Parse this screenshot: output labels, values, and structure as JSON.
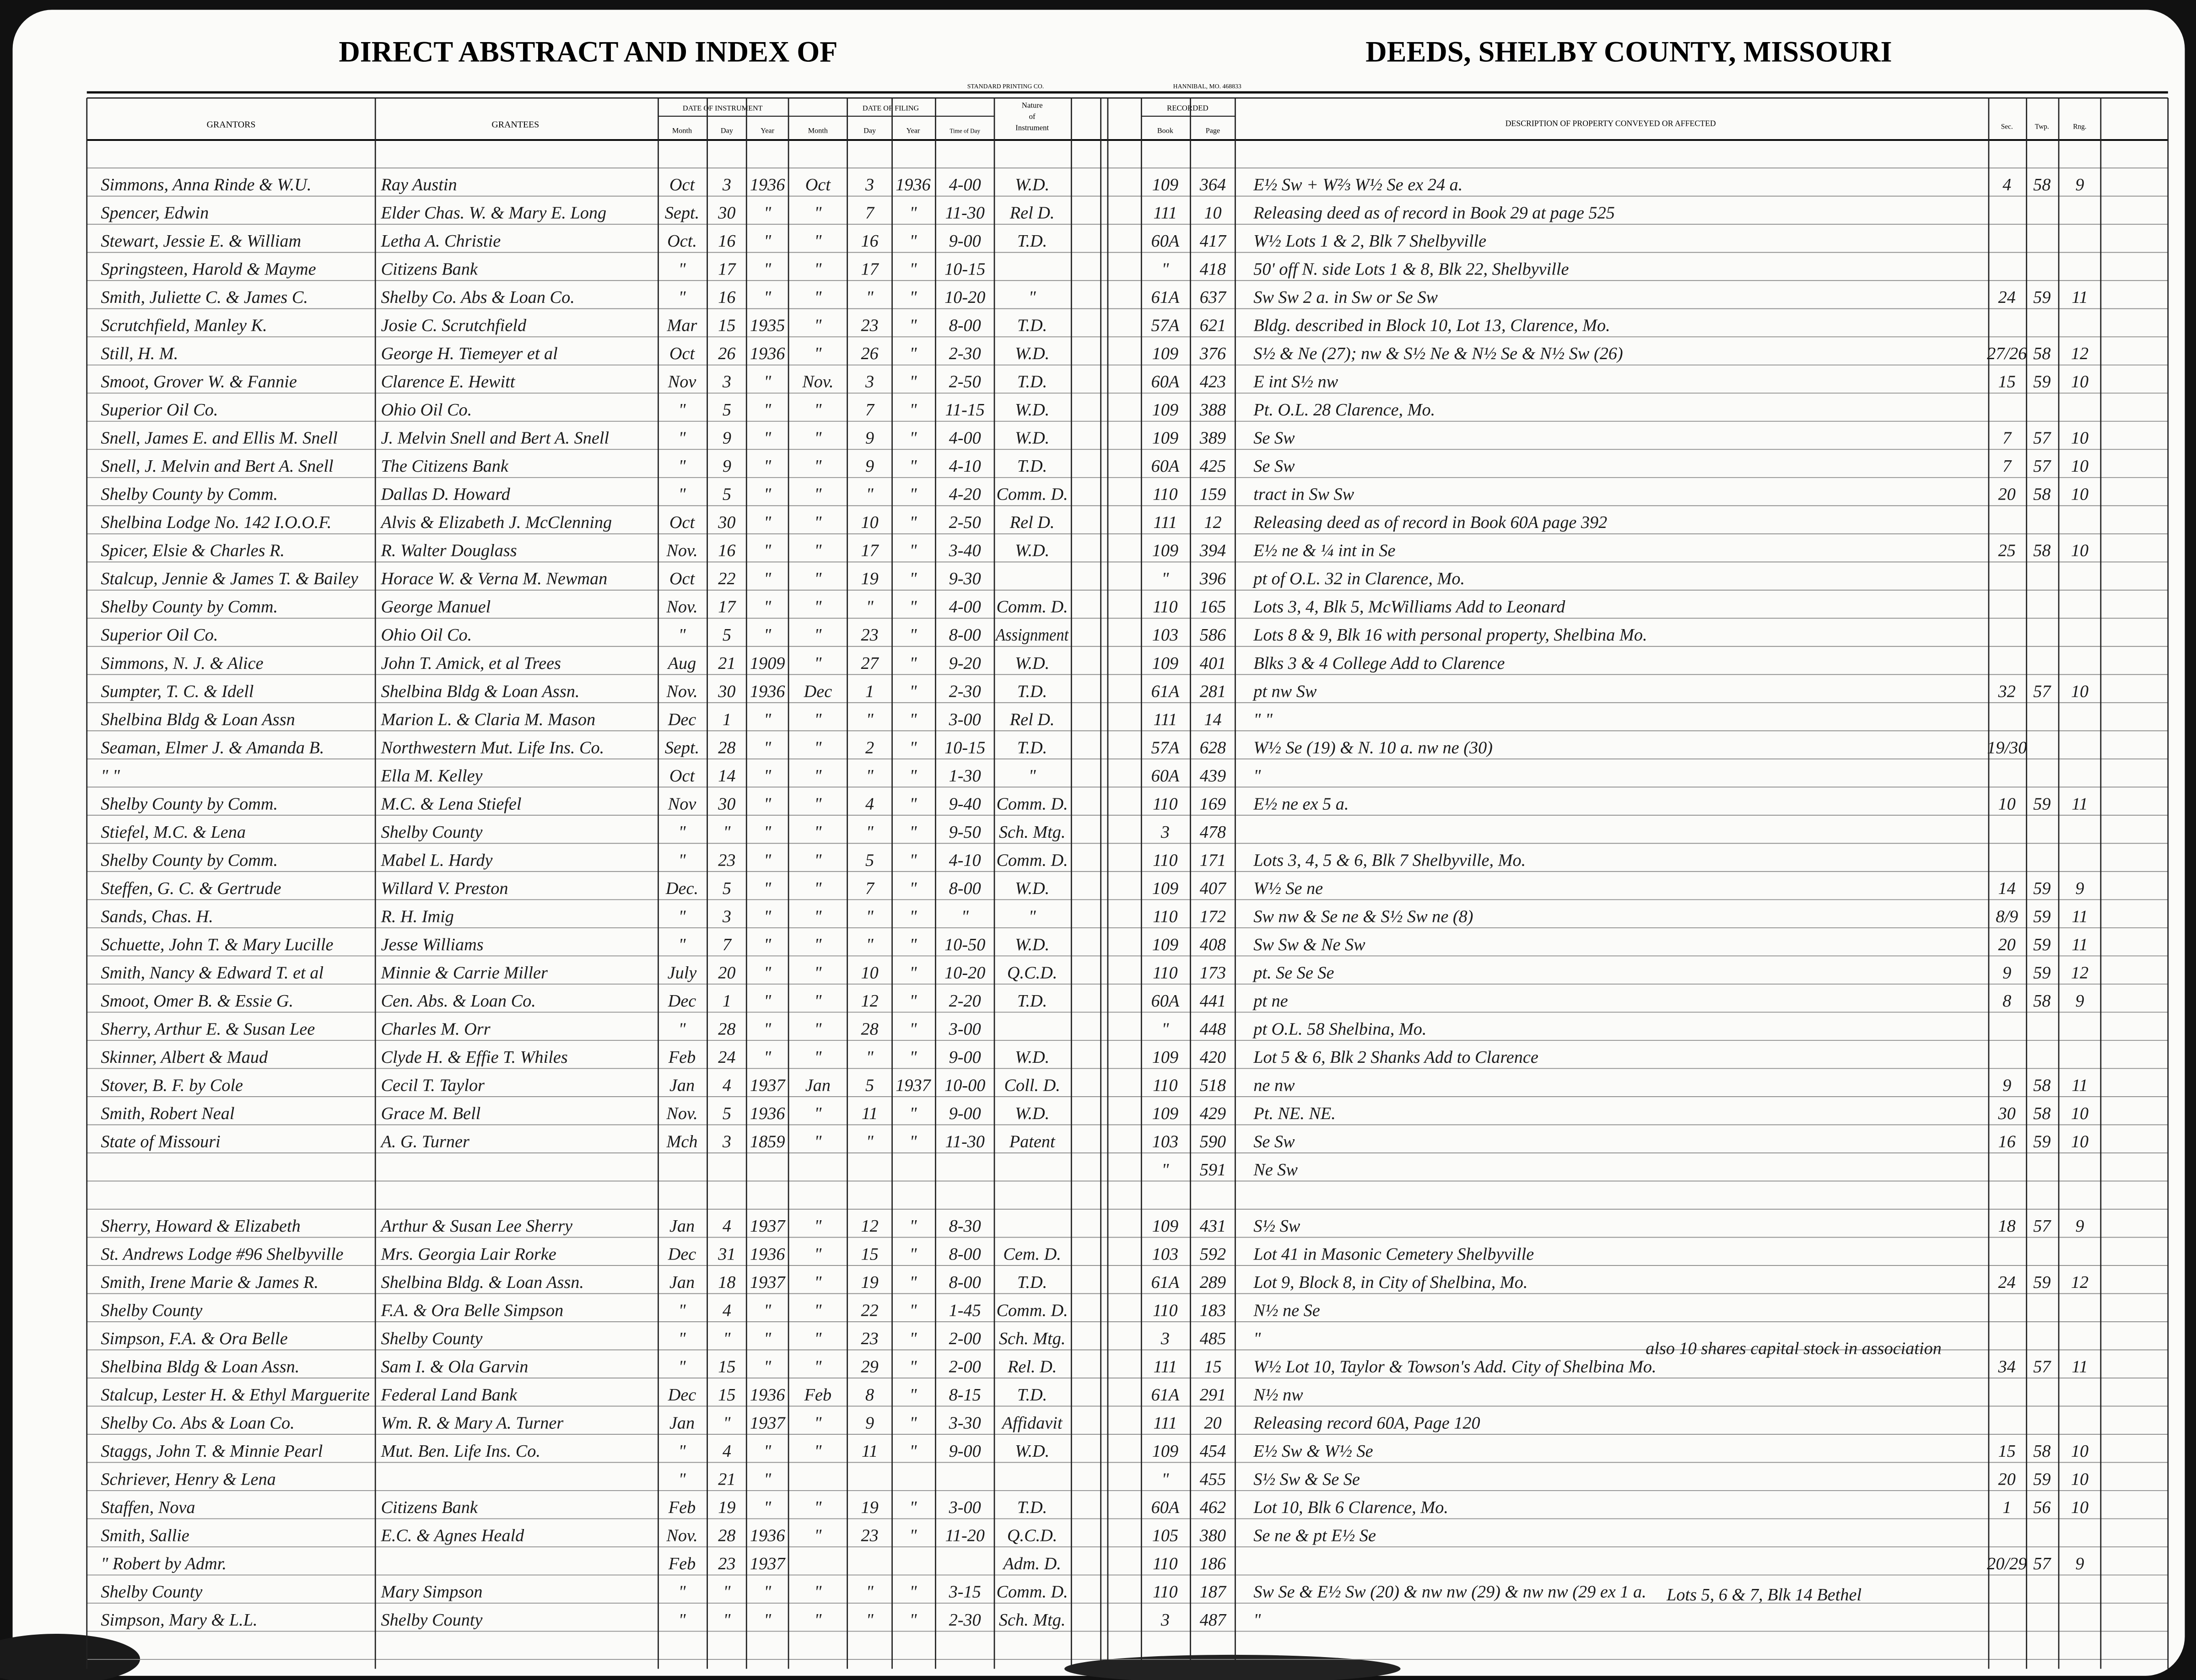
{
  "header": {
    "title_left": "DIRECT ABSTRACT AND INDEX OF",
    "title_right": "DEEDS, SHELBY COUNTY, MISSOURI",
    "printer": "STANDARD PRINTING CO.",
    "printer_place": "HANNIBAL, MO. 468833"
  },
  "columns": {
    "grantors": "GRANTORS",
    "grantees": "GRANTEES",
    "date_of_instrument": "DATE OF INSTRUMENT",
    "instrument_subheads": [
      "Month",
      "Day",
      "Year"
    ],
    "date_of_filing": "DATE OF FILING",
    "filing_subheads": [
      "Month",
      "Day",
      "Year",
      "Time of Day"
    ],
    "nature": [
      "Nature",
      "of",
      "Instrument"
    ],
    "recorded": "RECORDED",
    "recorded_subheads": [
      "Book",
      "Page"
    ],
    "description": "DESCRIPTION OF PROPERTY CONVEYED OR AFFECTED",
    "location_subheads": [
      "Sec.",
      "Twp.",
      "Rng."
    ]
  },
  "table": {
    "rows": [
      [
        "Simmons, Anna Rinde & W.U.",
        "Ray Austin",
        "Oct",
        "3",
        "1936",
        "Oct",
        "3",
        "1936",
        "4-00",
        "W.D.",
        "109",
        "364",
        "E½ Sw + W⅔ W½ Se ex 24 a.",
        "4",
        "58",
        "9"
      ],
      [
        "Spencer, Edwin",
        "Elder Chas. W. & Mary E. Long",
        "Sept.",
        "30",
        "\"",
        "\"",
        "7",
        "\"",
        "11-30",
        "Rel D.",
        "111",
        "10",
        "Releasing deed as of record in Book 29 at page 525",
        null,
        null,
        null
      ],
      [
        "Stewart, Jessie E. & William",
        "Letha A. Christie",
        "Oct.",
        "16",
        "\"",
        "\"",
        "16",
        "\"",
        "9-00",
        "T.D.",
        "60A",
        "417",
        "W½ Lots 1 & 2, Blk 7 Shelbyville",
        null,
        null,
        null
      ],
      [
        "Springsteen, Harold & Mayme",
        "Citizens Bank",
        "\"",
        "17",
        "\"",
        "\"",
        "17",
        "\"",
        "10-15",
        null,
        "\"",
        "418",
        "50' off N. side Lots 1 & 8, Blk 22, Shelbyville",
        null,
        null,
        null
      ],
      [
        "Smith, Juliette C. & James C.",
        "Shelby Co. Abs & Loan Co.",
        "\"",
        "16",
        "\"",
        "\"",
        "\"",
        "\"",
        "10-20",
        "\"",
        "61A",
        "637",
        "Sw Sw 2 a. in Sw or Se Sw",
        "24",
        "59",
        "11"
      ],
      [
        "Scrutchfield, Manley K.",
        "Josie C. Scrutchfield",
        "Mar",
        "15",
        "1935",
        "\"",
        "23",
        "\"",
        "8-00",
        "T.D.",
        "57A",
        "621",
        "Bldg. described in Block 10, Lot 13, Clarence, Mo.",
        null,
        null,
        null
      ],
      [
        "Still, H. M.",
        "George H. Tiemeyer et al",
        "Oct",
        "26",
        "1936",
        "\"",
        "26",
        "\"",
        "2-30",
        "W.D.",
        "109",
        "376",
        "S½ & Ne (27); nw & S½ Ne & N½ Se & N½ Sw (26)",
        "27/26",
        "58",
        "12"
      ],
      [
        "Smoot, Grover W. & Fannie",
        "Clarence E. Hewitt",
        "Nov",
        "3",
        "\"",
        "Nov.",
        "3",
        "\"",
        "2-50",
        "T.D.",
        "60A",
        "423",
        "E int S½ nw",
        "15",
        "59",
        "10"
      ],
      [
        "Superior Oil Co.",
        "Ohio Oil Co.",
        "\"",
        "5",
        "\"",
        "\"",
        "7",
        "\"",
        "11-15",
        "W.D.",
        "109",
        "388",
        "Pt. O.L. 28 Clarence, Mo.",
        null,
        null,
        null
      ],
      [
        "Snell, James E. and Ellis M. Snell",
        "J. Melvin Snell and Bert A. Snell",
        "\"",
        "9",
        "\"",
        "\"",
        "9",
        "\"",
        "4-00",
        "W.D.",
        "109",
        "389",
        "Se Sw",
        "7",
        "57",
        "10"
      ],
      [
        "Snell, J. Melvin and Bert A. Snell",
        "The Citizens Bank",
        "\"",
        "9",
        "\"",
        "\"",
        "9",
        "\"",
        "4-10",
        "T.D.",
        "60A",
        "425",
        "Se Sw",
        "7",
        "57",
        "10"
      ],
      [
        "Shelby County by Comm.",
        "Dallas D. Howard",
        "\"",
        "5",
        "\"",
        "\"",
        "\"",
        "\"",
        "4-20",
        "Comm. D.",
        "110",
        "159",
        "tract in Sw Sw",
        "20",
        "58",
        "10"
      ],
      [
        "Shelbina Lodge No. 142 I.O.O.F.",
        "Alvis & Elizabeth J. McClenning",
        "Oct",
        "30",
        "\"",
        "\"",
        "10",
        "\"",
        "2-50",
        "Rel D.",
        "111",
        "12",
        "Releasing deed as of record in Book 60A page 392",
        null,
        null,
        null
      ],
      [
        "Spicer, Elsie & Charles R.",
        "R. Walter Douglass",
        "Nov.",
        "16",
        "\"",
        "\"",
        "17",
        "\"",
        "3-40",
        "W.D.",
        "109",
        "394",
        "E½ ne & ¼ int in Se",
        "25",
        "58",
        "10"
      ],
      [
        "Stalcup, Jennie & James T. & Bailey",
        "Horace W. & Verna M. Newman",
        "Oct",
        "22",
        "\"",
        "\"",
        "19",
        "\"",
        "9-30",
        null,
        "\"",
        "396",
        "pt of O.L. 32 in Clarence, Mo.",
        null,
        null,
        null
      ],
      [
        "Shelby County by Comm.",
        "George Manuel",
        "Nov.",
        "17",
        "\"",
        "\"",
        "\"",
        "\"",
        "4-00",
        "Comm. D.",
        "110",
        "165",
        "Lots 3, 4, Blk 5, McWilliams Add to Leonard",
        null,
        null,
        null
      ],
      [
        "Superior Oil Co.",
        "Ohio Oil Co.",
        "\"",
        "5",
        "\"",
        "\"",
        "23",
        "\"",
        "8-00",
        "Assignment",
        "103",
        "586",
        "Lots 8 & 9, Blk 16 with personal property, Shelbina Mo.",
        null,
        null,
        null
      ],
      [
        "Simmons, N. J. & Alice",
        "John T. Amick, et al Trees",
        "Aug",
        "21",
        "1909",
        "\"",
        "27",
        "\"",
        "9-20",
        "W.D.",
        "109",
        "401",
        "Blks 3 & 4 College Add to Clarence",
        null,
        null,
        null
      ],
      [
        "Sumpter, T. C. & Idell",
        "Shelbina Bldg & Loan Assn.",
        "Nov.",
        "30",
        "1936",
        "Dec",
        "1",
        "\"",
        "2-30",
        "T.D.",
        "61A",
        "281",
        "pt nw Sw",
        "32",
        "57",
        "10"
      ],
      [
        "Shelbina Bldg & Loan Assn",
        "Marion L. & Claria M. Mason",
        "Dec",
        "1",
        "\"",
        "\"",
        "\"",
        "\"",
        "3-00",
        "Rel D.",
        "111",
        "14",
        "\"   \"",
        null,
        null,
        null
      ],
      [
        "Seaman, Elmer J. & Amanda B.",
        "Northwestern Mut. Life Ins. Co.",
        "Sept.",
        "28",
        "\"",
        "\"",
        "2",
        "\"",
        "10-15",
        "T.D.",
        "57A",
        "628",
        "W½ Se (19) & N. 10 a. nw ne (30)",
        "19/30",
        null,
        null
      ],
      [
        "\"   \"",
        "Ella M. Kelley",
        "Oct",
        "14",
        "\"",
        "\"",
        "\"",
        "\"",
        "1-30",
        "\"",
        "60A",
        "439",
        "\"",
        null,
        null,
        null
      ],
      [
        "Shelby County by Comm.",
        "M.C. & Lena Stiefel",
        "Nov",
        "30",
        "\"",
        "\"",
        "4",
        "\"",
        "9-40",
        "Comm. D.",
        "110",
        "169",
        "E½ ne ex 5 a.",
        "10",
        "59",
        "11"
      ],
      [
        "Stiefel, M.C. & Lena",
        "Shelby County",
        "\"",
        "\"",
        "\"",
        "\"",
        "\"",
        "\"",
        "9-50",
        "Sch. Mtg.",
        "3",
        "478",
        null,
        null,
        null,
        null
      ],
      [
        "Shelby County by Comm.",
        "Mabel L. Hardy",
        "\"",
        "23",
        "\"",
        "\"",
        "5",
        "\"",
        "4-10",
        "Comm. D.",
        "110",
        "171",
        "Lots 3, 4, 5 & 6, Blk 7 Shelbyville, Mo.",
        null,
        null,
        null
      ],
      [
        "Steffen, G. C. & Gertrude",
        "Willard V. Preston",
        "Dec.",
        "5",
        "\"",
        "\"",
        "7",
        "\"",
        "8-00",
        "W.D.",
        "109",
        "407",
        "W½ Se ne",
        "14",
        "59",
        "9"
      ],
      [
        "Sands, Chas. H.",
        "R. H. Imig",
        "\"",
        "3",
        "\"",
        "\"",
        "\"",
        "\"",
        "\"",
        "\"",
        "110",
        "172",
        "Sw nw & Se ne & S½ Sw ne (8)",
        "8/9",
        "59",
        "11"
      ],
      [
        "Schuette, John T. & Mary Lucille",
        "Jesse Williams",
        "\"",
        "7",
        "\"",
        "\"",
        "\"",
        "\"",
        "10-50",
        "W.D.",
        "109",
        "408",
        "Sw Sw & Ne Sw",
        "20",
        "59",
        "11"
      ],
      [
        "Smith, Nancy & Edward T. et al",
        "Minnie & Carrie Miller",
        "July",
        "20",
        "\"",
        "\"",
        "10",
        "\"",
        "10-20",
        "Q.C.D.",
        "110",
        "173",
        "pt. Se Se Se",
        "9",
        "59",
        "12"
      ],
      [
        "Smoot, Omer B. & Essie G.",
        "Cen. Abs. & Loan Co.",
        "Dec",
        "1",
        "\"",
        "\"",
        "12",
        "\"",
        "2-20",
        "T.D.",
        "60A",
        "441",
        "pt ne",
        "8",
        "58",
        "9"
      ],
      [
        "Sherry, Arthur E. & Susan Lee",
        "Charles M. Orr",
        "\"",
        "28",
        "\"",
        "\"",
        "28",
        "\"",
        "3-00",
        null,
        "\"",
        "448",
        "pt O.L. 58 Shelbina, Mo.",
        null,
        null,
        null
      ],
      [
        "Skinner, Albert & Maud",
        "Clyde H. & Effie T. Whiles",
        "Feb",
        "24",
        "\"",
        "\"",
        "\"",
        "\"",
        "9-00",
        "W.D.",
        "109",
        "420",
        "Lot 5 & 6, Blk 2 Shanks Add to Clarence",
        null,
        null,
        null
      ],
      [
        "Stover, B. F. by Cole",
        "Cecil T. Taylor",
        "Jan",
        "4",
        "1937",
        "Jan",
        "5",
        "1937",
        "10-00",
        "Coll. D.",
        "110",
        "518",
        "ne nw",
        "9",
        "58",
        "11"
      ],
      [
        "Smith, Robert Neal",
        "Grace M. Bell",
        "Nov.",
        "5",
        "1936",
        "\"",
        "11",
        "\"",
        "9-00",
        "W.D.",
        "109",
        "429",
        "Pt. NE. NE.",
        "30",
        "58",
        "10"
      ],
      [
        "State of Missouri",
        "A. G. Turner",
        "Mch",
        "3",
        "1859",
        "\"",
        "\"",
        "\"",
        "11-30",
        "Patent",
        "103",
        "590",
        "Se Sw",
        "16",
        "59",
        "10"
      ],
      [
        null,
        null,
        null,
        null,
        null,
        null,
        null,
        null,
        null,
        null,
        "\"",
        "591",
        "Ne Sw",
        null,
        null,
        null
      ],
      [
        "Sherry, Howard & Elizabeth",
        "Arthur & Susan Lee Sherry",
        "Jan",
        "4",
        "1937",
        "\"",
        "12",
        "\"",
        "8-30",
        null,
        "109",
        "431",
        "S½ Sw",
        "18",
        "57",
        "9"
      ],
      [
        "St. Andrews Lodge #96 Shelbyville",
        "Mrs. Georgia Lair Rorke",
        "Dec",
        "31",
        "1936",
        "\"",
        "15",
        "\"",
        "8-00",
        "Cem. D.",
        "103",
        "592",
        "Lot 41 in Masonic Cemetery Shelbyville",
        null,
        null,
        null
      ],
      [
        "Smith, Irene Marie & James R.",
        "Shelbina Bldg. & Loan Assn.",
        "Jan",
        "18",
        "1937",
        "\"",
        "19",
        "\"",
        "8-00",
        "T.D.",
        "61A",
        "289",
        "Lot 9, Block 8, in City of Shelbina, Mo.",
        "24",
        "59",
        "12"
      ],
      [
        "Shelby County",
        "F.A. & Ora Belle Simpson",
        "\"",
        "4",
        "\"",
        "\"",
        "22",
        "\"",
        "1-45",
        "Comm. D.",
        "110",
        "183",
        "N½ ne Se",
        null,
        null,
        null
      ],
      [
        "Simpson, F.A. & Ora Belle",
        "Shelby County",
        "\"",
        "\"",
        "\"",
        "\"",
        "23",
        "\"",
        "2-00",
        "Sch. Mtg.",
        "3",
        "485",
        "\"",
        null,
        null,
        null
      ],
      [
        "Shelbina Bldg & Loan Assn.",
        "Sam I. & Ola Garvin",
        "\"",
        "15",
        "\"",
        "\"",
        "29",
        "\"",
        "2-00",
        "Rel. D.",
        "111",
        "15",
        "W½ Lot 10, Taylor & Towson's Add. City of Shelbina Mo.",
        "34",
        "57",
        "11"
      ],
      [
        "Stalcup, Lester H. & Ethyl Marguerite",
        "Federal Land Bank",
        "Dec",
        "15",
        "1936",
        "Feb",
        "8",
        "\"",
        "8-15",
        "T.D.",
        "61A",
        "291",
        "N½ nw",
        null,
        null,
        null
      ],
      [
        "Shelby Co. Abs & Loan Co.",
        "Wm. R. & Mary A. Turner",
        "Jan",
        "\"",
        "1937",
        "\"",
        "9",
        "\"",
        "3-30",
        "Affidavit",
        "111",
        "20",
        "Releasing record 60A, Page 120",
        null,
        null,
        null
      ],
      [
        "Staggs, John T. & Minnie Pearl",
        "Mut. Ben. Life Ins. Co.",
        "\"",
        "4",
        "\"",
        "\"",
        "11",
        "\"",
        "9-00",
        "W.D.",
        "109",
        "454",
        "E½ Sw & W½ Se",
        "15",
        "58",
        "10"
      ],
      [
        "Schriever, Henry & Lena",
        null,
        "\"",
        "21",
        "\"",
        null,
        null,
        null,
        null,
        null,
        "\"",
        "455",
        "S½ Sw & Se Se",
        "20",
        "59",
        "10"
      ],
      [
        "Staffen, Nova",
        "Citizens Bank",
        "Feb",
        "19",
        "\"",
        "\"",
        "19",
        "\"",
        "3-00",
        "T.D.",
        "60A",
        "462",
        "Lot 10, Blk 6 Clarence, Mo.",
        "1",
        "56",
        "10"
      ],
      [
        "Smith, Sallie",
        "E.C. & Agnes Heald",
        "Nov.",
        "28",
        "1936",
        "\"",
        "23",
        "\"",
        "11-20",
        "Q.C.D.",
        "105",
        "380",
        "Se ne & pt E½ Se",
        null,
        null,
        null
      ],
      [
        "\" Robert by Admr.",
        null,
        "Feb",
        "23",
        "1937",
        null,
        null,
        null,
        null,
        "Adm. D.",
        "110",
        "186",
        null,
        "20/29",
        "57",
        "9"
      ],
      [
        "Shelby County",
        "Mary Simpson",
        "\"",
        "\"",
        "\"",
        "\"",
        "\"",
        "\"",
        "3-15",
        "Comm. D.",
        "110",
        "187",
        "Sw Se & E½ Sw (20) & nw nw (29) & nw nw (29 ex 1 a.",
        null,
        null,
        null
      ],
      [
        "Simpson, Mary & L.L.",
        "Shelby County",
        "\"",
        "\"",
        "\"",
        "\"",
        "\"",
        "\"",
        "2-30",
        "Sch. Mtg.",
        "3",
        "487",
        "\"",
        null,
        null,
        null
      ]
    ],
    "annotations": [
      "also 10 shares capital stock in association",
      "Lots 5, 6 & 7, Blk 14 Bethel"
    ]
  }
}
